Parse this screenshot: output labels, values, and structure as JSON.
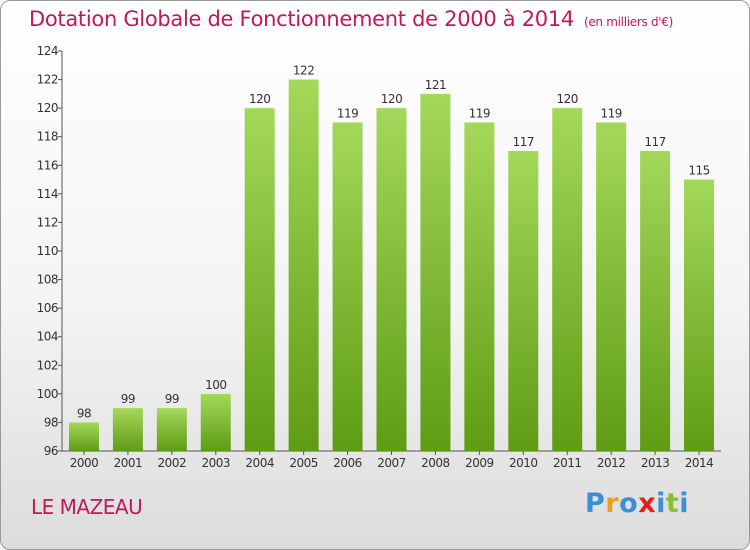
{
  "header": {
    "title": "Dotation Globale de Fonctionnement de 2000 à 2014",
    "unit": "(en milliers d'€)"
  },
  "footer": {
    "commune": "LE MAZEAU",
    "logo": [
      "P",
      "r",
      "o",
      "x",
      "i",
      "t",
      "i"
    ],
    "logo_colors": [
      "#3a8fd8",
      "#e8a020",
      "#3a8fd8",
      "#e02020",
      "#3a8fd8",
      "#88c030",
      "#3a8fd8"
    ]
  },
  "chart_data": {
    "type": "bar",
    "title": "Dotation Globale de Fonctionnement de 2000 à 2014",
    "xlabel": "",
    "ylabel": "",
    "categories": [
      "2000",
      "2001",
      "2002",
      "2003",
      "2004",
      "2005",
      "2006",
      "2007",
      "2008",
      "2009",
      "2010",
      "2011",
      "2012",
      "2013",
      "2014"
    ],
    "values": [
      98,
      99,
      99,
      100,
      120,
      122,
      119,
      120,
      121,
      119,
      117,
      120,
      119,
      117,
      115
    ],
    "ylim": [
      96,
      124
    ],
    "yticks": [
      96,
      98,
      100,
      102,
      104,
      106,
      108,
      110,
      112,
      114,
      116,
      118,
      120,
      122,
      124
    ],
    "grid": false,
    "bar_color_top": "#a4d85a",
    "bar_color_bottom": "#5f9c14"
  }
}
